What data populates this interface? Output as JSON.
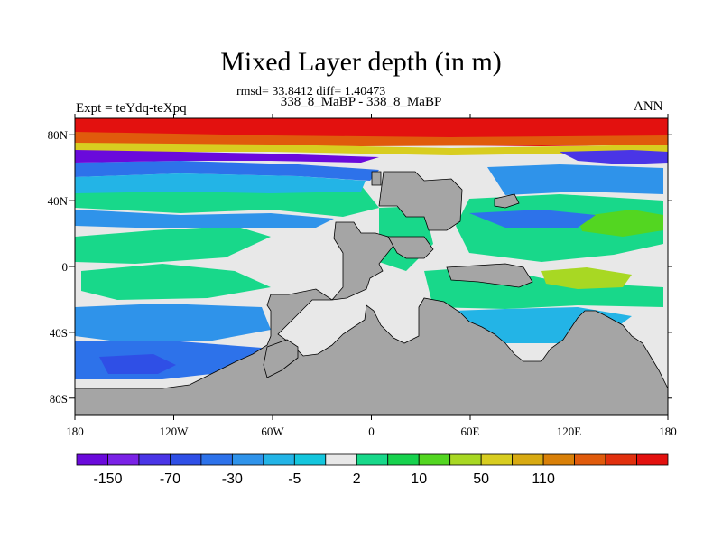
{
  "chart_data": {
    "type": "heatmap",
    "title": "Mixed Layer depth (in m)",
    "stats_text": "rmsd= 33.8412 diff= 1.40473",
    "subtitle": "338_8_MaBP - 338_8_MaBP",
    "left_label": "Expt = teYdq-teXpq",
    "right_label": "ANN",
    "x_range": [
      -180,
      180
    ],
    "y_range": [
      -90,
      90
    ],
    "x_ticks": [
      {
        "value": -180,
        "label": "180"
      },
      {
        "value": -120,
        "label": "120W"
      },
      {
        "value": -60,
        "label": "60W"
      },
      {
        "value": 0,
        "label": "0"
      },
      {
        "value": 60,
        "label": "60E"
      },
      {
        "value": 120,
        "label": "120E"
      },
      {
        "value": 180,
        "label": "180"
      }
    ],
    "y_ticks": [
      {
        "value": 80,
        "label": "80N"
      },
      {
        "value": 40,
        "label": "40N"
      },
      {
        "value": 0,
        "label": "0"
      },
      {
        "value": -40,
        "label": "40S"
      },
      {
        "value": -80,
        "label": "80S"
      }
    ],
    "colorbar": {
      "colors": [
        "#6a0adb",
        "#7a22e6",
        "#4a35e6",
        "#2f4fe6",
        "#2d72ea",
        "#2f93ea",
        "#23b4e6",
        "#14c6dd",
        "#e8e8e8",
        "#18d88a",
        "#17d24e",
        "#53d621",
        "#a8d823",
        "#d8cd20",
        "#d8aa12",
        "#d98008",
        "#e05b0c",
        "#e1300e",
        "#e3110f"
      ],
      "labels": [
        {
          "boundary": 1,
          "text": "-150"
        },
        {
          "boundary": 3,
          "text": "-70"
        },
        {
          "boundary": 5,
          "text": "-30"
        },
        {
          "boundary": 7,
          "text": "-5"
        },
        {
          "boundary": 9,
          "text": "2"
        },
        {
          "boundary": 11,
          "text": "10"
        },
        {
          "boundary": 13,
          "text": "50"
        },
        {
          "boundary": 15,
          "text": "110"
        }
      ]
    },
    "land_color": "#a5a5a5"
  }
}
